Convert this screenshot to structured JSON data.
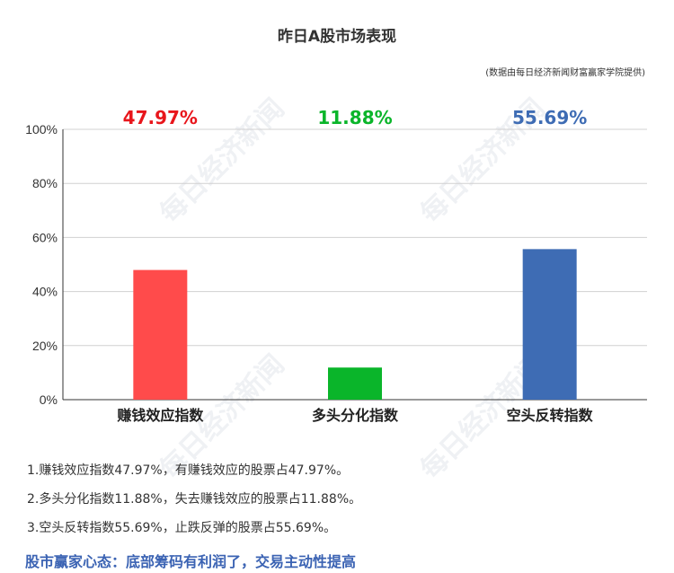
{
  "title": "昨日A股市场表现",
  "source_note": "(数据由每日经济新闻财富赢家学院提供)",
  "watermark": "每日经济新闻",
  "chart_data": {
    "type": "bar",
    "categories": [
      "赚钱效应指数",
      "多头分化指数",
      "空头反转指数"
    ],
    "values": [
      47.97,
      11.88,
      55.69
    ],
    "value_labels": [
      "47.97%",
      "11.88%",
      "55.69%"
    ],
    "colors": [
      "#ff4b4b",
      "#0ab52a",
      "#3e6cb4"
    ],
    "label_colors": [
      "#e8161c",
      "#0ab52a",
      "#3e6cb4"
    ],
    "ylim": [
      0,
      100
    ],
    "yticks": [
      0,
      20,
      40,
      60,
      80,
      100
    ],
    "ytick_labels": [
      "0%",
      "20%",
      "40%",
      "60%",
      "80%",
      "100%"
    ],
    "grid": true
  },
  "notes": [
    "1.赚钱效应指数47.97%，有赚钱效应的股票占47.97%。",
    "2.多头分化指数11.88%，失去赚钱效应的股票占11.88%。",
    "3.空头反转指数55.69%，止跌反弹的股票占55.69%。"
  ],
  "summary": "股市赢家心态：底部筹码有利润了，交易主动性提高"
}
